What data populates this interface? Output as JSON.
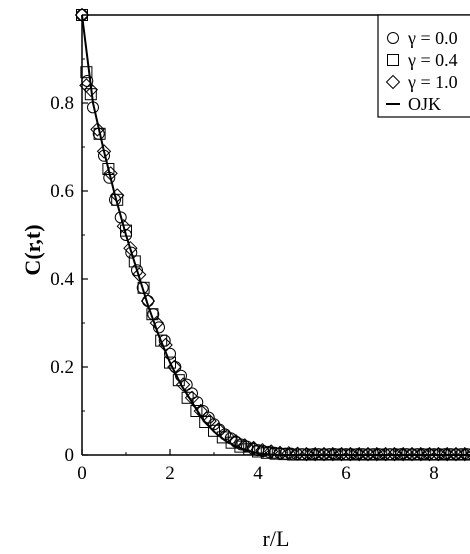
{
  "chart_data": {
    "type": "scatter",
    "xlabel": "r/L",
    "ylabel": "C(r,t)",
    "xlim": [
      0,
      9
    ],
    "ylim": [
      0,
      1
    ],
    "x_ticks": [
      "0",
      "2",
      "4",
      "6",
      "8"
    ],
    "y_ticks": [
      "0",
      "0.2",
      "0.4",
      "0.6",
      "0.8"
    ],
    "legend": {
      "placement": "top-right"
    },
    "series": [
      {
        "name": "γ = 0.0",
        "marker": "circle",
        "x": [
          0,
          0.12,
          0.25,
          0.38,
          0.5,
          0.62,
          0.75,
          0.88,
          1.0,
          1.12,
          1.25,
          1.38,
          1.5,
          1.62,
          1.75,
          1.88,
          2.0,
          2.12,
          2.25,
          2.38,
          2.5,
          2.62,
          2.75,
          2.88,
          3.0,
          3.12,
          3.25,
          3.38,
          3.5,
          3.62,
          3.75,
          3.88,
          4.0,
          4.12,
          4.25,
          4.38,
          4.5,
          4.62,
          4.75,
          4.88,
          5.0,
          5.12,
          5.25,
          5.38,
          5.5,
          5.62,
          5.75,
          5.88,
          6.0,
          6.12,
          6.25,
          6.38,
          6.5,
          6.62,
          6.75,
          6.88,
          7.0,
          7.12,
          7.25,
          7.38,
          7.5,
          7.62,
          7.75,
          7.88,
          8.0,
          8.12,
          8.25,
          8.38,
          8.5,
          8.62,
          8.75,
          8.88,
          9.0
        ],
        "y": [
          1.0,
          0.85,
          0.79,
          0.73,
          0.68,
          0.63,
          0.58,
          0.54,
          0.5,
          0.46,
          0.42,
          0.38,
          0.35,
          0.32,
          0.29,
          0.26,
          0.23,
          0.2,
          0.18,
          0.16,
          0.14,
          0.12,
          0.1,
          0.085,
          0.07,
          0.058,
          0.047,
          0.038,
          0.03,
          0.024,
          0.019,
          0.015,
          0.011,
          0.009,
          0.007,
          0.005,
          0.004,
          0.003,
          0.003,
          0.002,
          0.002,
          0.002,
          0.002,
          0.002,
          0.002,
          0.002,
          0.002,
          0.002,
          0.002,
          0.002,
          0.002,
          0.002,
          0.002,
          0.002,
          0.002,
          0.002,
          0.002,
          0.002,
          0.002,
          0.002,
          0.002,
          0.002,
          0.002,
          0.002,
          0.002,
          0.002,
          0.002,
          0.002,
          0.002,
          0.002,
          0.002,
          0.002,
          0.002
        ]
      },
      {
        "name": "γ = 0.4",
        "marker": "square",
        "x": [
          0,
          0.1,
          0.2,
          0.4,
          0.6,
          0.8,
          1.0,
          1.2,
          1.4,
          1.6,
          1.8,
          2.0,
          2.2,
          2.4,
          2.6,
          2.8,
          3.0,
          3.2,
          3.4,
          3.6,
          3.8,
          4.0,
          4.2,
          4.4,
          4.6,
          4.8,
          5.0,
          5.2,
          5.4,
          5.6,
          5.8,
          6.0,
          6.2,
          6.4,
          6.6,
          6.8,
          7.0,
          7.2,
          7.4,
          7.6,
          7.8,
          8.0,
          8.2,
          8.4,
          8.6,
          8.8,
          9.0
        ],
        "y": [
          1.0,
          0.87,
          0.82,
          0.73,
          0.65,
          0.58,
          0.51,
          0.44,
          0.38,
          0.32,
          0.26,
          0.21,
          0.17,
          0.13,
          0.1,
          0.075,
          0.055,
          0.04,
          0.028,
          0.019,
          0.013,
          0.008,
          0.005,
          0.003,
          0.002,
          0.001,
          0.001,
          0.001,
          0.001,
          0.001,
          0.001,
          0.001,
          0.001,
          0.001,
          0.001,
          0.001,
          0.001,
          0.001,
          0.001,
          0.001,
          0.001,
          0.001,
          0.001,
          0.001,
          0.001,
          0.001,
          0.001
        ]
      },
      {
        "name": "γ = 1.0",
        "marker": "diamond",
        "x": [
          0,
          0.1,
          0.2,
          0.35,
          0.5,
          0.65,
          0.8,
          0.95,
          1.1,
          1.3,
          1.5,
          1.7,
          1.9,
          2.1,
          2.3,
          2.5,
          2.7,
          2.9,
          3.1,
          3.3,
          3.5,
          3.7,
          3.9,
          4.1,
          4.3,
          4.5,
          4.7,
          4.9,
          5.1,
          5.3,
          5.5,
          5.7,
          5.9,
          6.1,
          6.3,
          6.5,
          6.7,
          6.9,
          7.1,
          7.3,
          7.5,
          7.7,
          7.9,
          8.1,
          8.3,
          8.5,
          8.7,
          8.9
        ],
        "y": [
          1.0,
          0.84,
          0.83,
          0.74,
          0.69,
          0.64,
          0.59,
          0.52,
          0.47,
          0.41,
          0.35,
          0.3,
          0.25,
          0.2,
          0.16,
          0.13,
          0.1,
          0.077,
          0.058,
          0.043,
          0.031,
          0.022,
          0.016,
          0.011,
          0.008,
          0.005,
          0.004,
          0.003,
          0.002,
          0.002,
          0.002,
          0.002,
          0.002,
          0.002,
          0.002,
          0.002,
          0.002,
          0.002,
          0.002,
          0.002,
          0.002,
          0.002,
          0.002,
          0.002,
          0.002,
          0.002,
          0.002,
          0.002
        ]
      },
      {
        "name": "OJK",
        "marker": "line",
        "x": [
          0,
          0.25,
          0.5,
          0.75,
          1.0,
          1.25,
          1.5,
          1.75,
          2.0,
          2.25,
          2.5,
          2.75,
          3.0,
          3.25,
          3.5,
          3.75,
          4.0,
          4.25,
          4.5,
          5.0,
          6.0,
          7.0,
          8.0,
          9.0
        ],
        "y": [
          1.0,
          0.8,
          0.69,
          0.59,
          0.5,
          0.42,
          0.34,
          0.27,
          0.21,
          0.16,
          0.12,
          0.08,
          0.053,
          0.033,
          0.019,
          0.01,
          0.004,
          0.001,
          0.0,
          0.0,
          0.0,
          0.0,
          0.0,
          0.0
        ]
      }
    ]
  }
}
